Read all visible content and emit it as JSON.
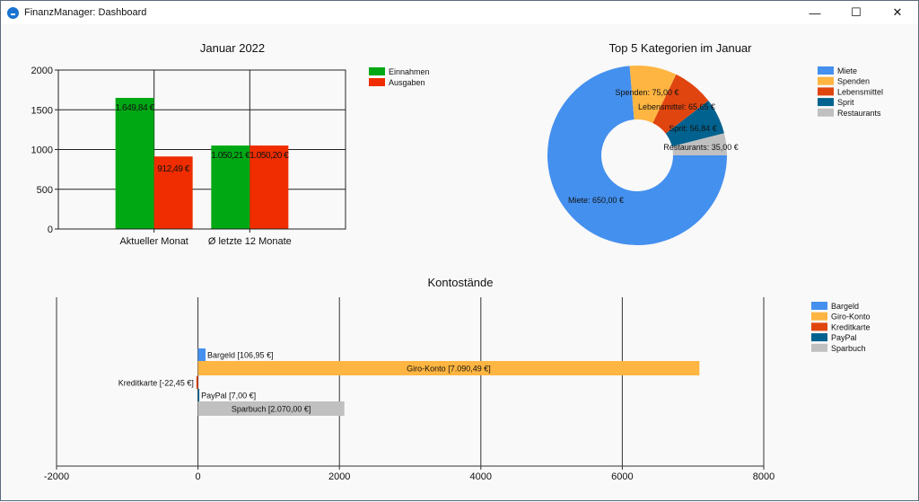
{
  "window": {
    "title": "FinanzManager: Dashboard",
    "minimize": "—",
    "maximize": "☐",
    "close": "✕"
  },
  "colors": {
    "einnahmen": "#00a814",
    "ausgaben": "#ef2d00",
    "miete": "#4490ee",
    "spenden": "#ffb541",
    "lebensmittel": "#e04510",
    "sprit": "#02628f",
    "restaurants": "#c0c0c0"
  },
  "chart_data": [
    {
      "type": "bar",
      "title": "Januar 2022",
      "categories": [
        "Aktueller Monat",
        "Ø letzte 12 Monate"
      ],
      "series": [
        {
          "name": "Einnahmen",
          "values": [
            1649.84,
            1050.21
          ],
          "labels": [
            "1.649,84 €",
            "1.050,21 €"
          ],
          "color": "#00a814"
        },
        {
          "name": "Ausgaben",
          "values": [
            912.49,
            1050.2
          ],
          "labels": [
            "912,49 €",
            "1.050,20 €"
          ],
          "color": "#ef2d00"
        }
      ],
      "ylim": [
        0,
        2000
      ],
      "yticks": [
        "0",
        "500",
        "1000",
        "1500",
        "2000"
      ],
      "grid": true,
      "legend": "top-right"
    },
    {
      "type": "pie",
      "title": "Top 5 Kategorien im Januar",
      "slices": [
        {
          "name": "Miete",
          "value": 650.0,
          "label": "Miete: 650,00 €",
          "color": "#4490ee"
        },
        {
          "name": "Spenden",
          "value": 75.0,
          "label": "Spenden: 75,00 €",
          "color": "#ffb541"
        },
        {
          "name": "Lebensmittel",
          "value": 65.65,
          "label": "Lebensmittel: 65,65 €",
          "color": "#e04510"
        },
        {
          "name": "Sprit",
          "value": 56.84,
          "label": "Sprit: 56,84 €",
          "color": "#02628f"
        },
        {
          "name": "Restaurants",
          "value": 35.0,
          "label": "Restaurants: 35,00 €",
          "color": "#c0c0c0"
        }
      ],
      "donut": true,
      "legend": "top-right"
    },
    {
      "type": "bar",
      "orientation": "horizontal",
      "title": "Kontostände",
      "series": [
        {
          "name": "Bargeld",
          "value": 106.95,
          "label": "Bargeld [106,95 €]",
          "color": "#4490ee"
        },
        {
          "name": "Giro-Konto",
          "value": 7090.49,
          "label": "Giro-Konto [7.090,49 €]",
          "color": "#ffb541"
        },
        {
          "name": "Kreditkarte",
          "value": -22.45,
          "label": "Kreditkarte [-22,45 €]",
          "color": "#e04510"
        },
        {
          "name": "PayPal",
          "value": 7.0,
          "label": "PayPal [7,00 €]",
          "color": "#02628f"
        },
        {
          "name": "Sparbuch",
          "value": 2070.0,
          "label": "Sparbuch [2.070,00 €]",
          "color": "#c0c0c0"
        }
      ],
      "xlim": [
        -2000,
        8000
      ],
      "xticks": [
        "-2000",
        "0",
        "2000",
        "4000",
        "6000",
        "8000"
      ],
      "grid": true,
      "legend": "top-right"
    }
  ]
}
